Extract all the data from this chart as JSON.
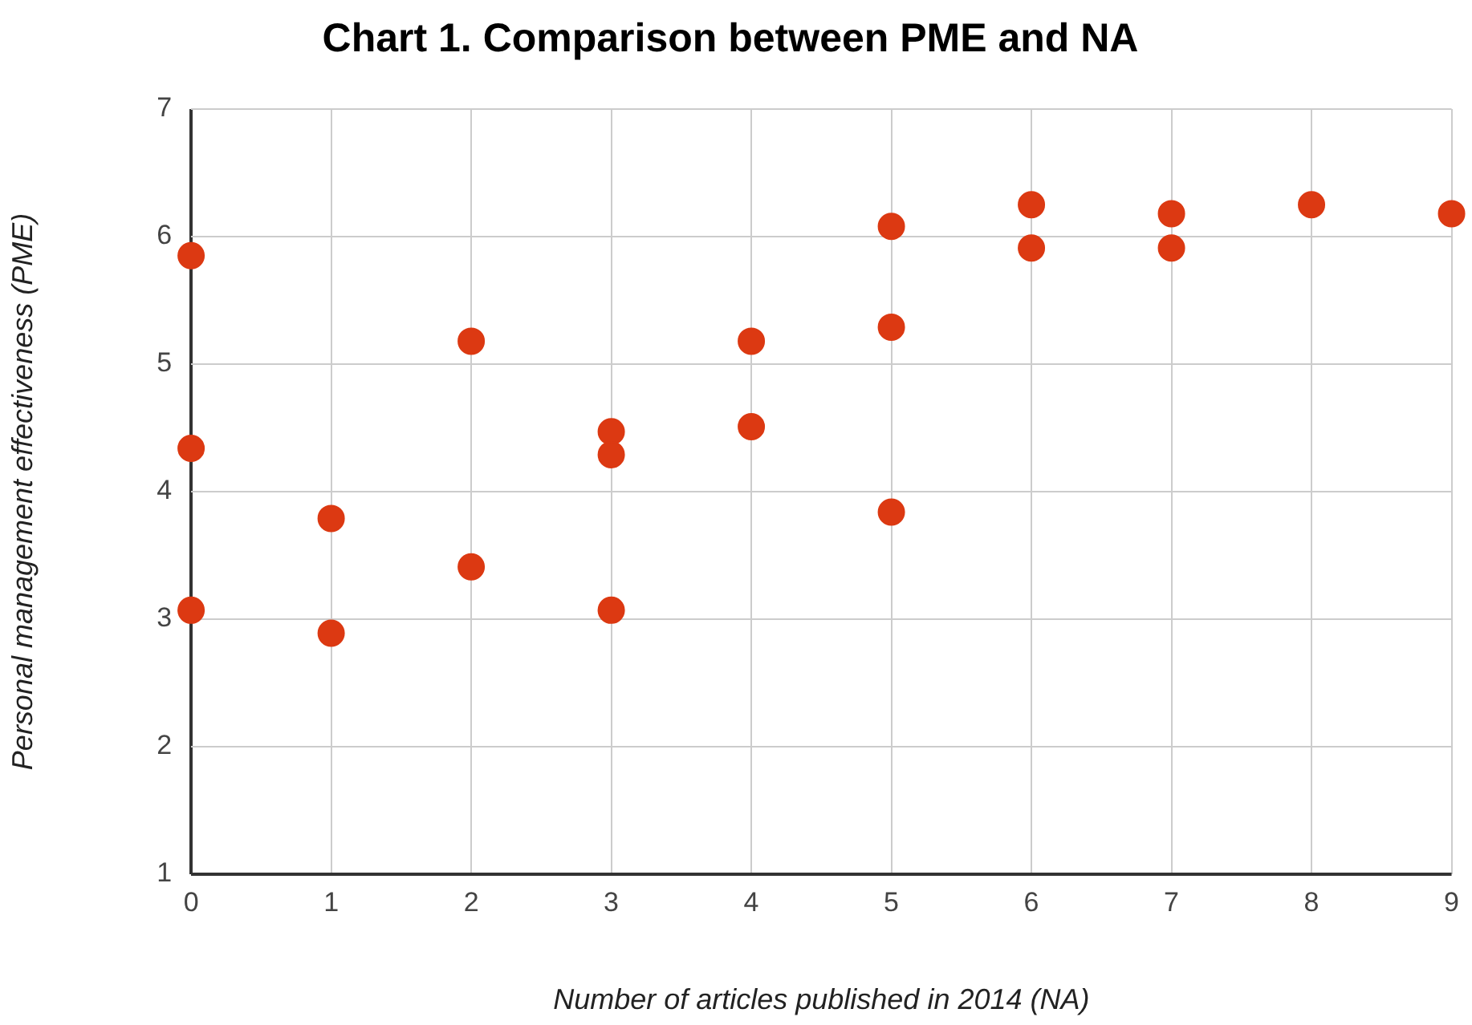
{
  "chart_data": {
    "type": "scatter",
    "title": "Chart 1. Comparison between PME and NA",
    "xlabel": "Number of articles published in 2014 (NA)",
    "ylabel": "Personal management effectiveness (PME)",
    "x": [
      0,
      0,
      0,
      1,
      1,
      2,
      2,
      3,
      3,
      3,
      4,
      4,
      5,
      5,
      5,
      6,
      6,
      7,
      7,
      8,
      9
    ],
    "series": [
      {
        "color": "#dc3912",
        "values": [
          5.85,
          4.34,
          3.07,
          3.79,
          2.89,
          5.18,
          3.41,
          4.47,
          4.29,
          3.07,
          5.18,
          4.51,
          6.08,
          5.29,
          3.84,
          6.25,
          5.91,
          6.18,
          5.91,
          6.25,
          6.18
        ]
      }
    ],
    "xlim": [
      0,
      9
    ],
    "xticks": [
      0,
      1,
      2,
      3,
      4,
      5,
      6,
      7,
      8,
      9
    ],
    "ylim": [
      1,
      7
    ],
    "yticks": [
      1,
      2,
      3,
      4,
      5,
      6,
      7
    ],
    "grid": true,
    "legend": false,
    "marker": "circle"
  }
}
